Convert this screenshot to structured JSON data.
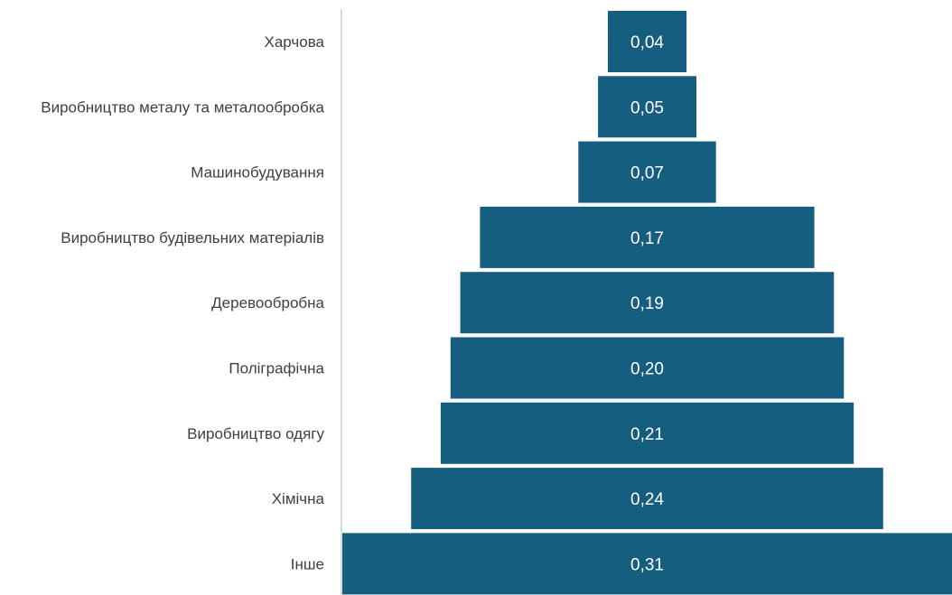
{
  "chart_data": {
    "type": "bar",
    "orientation": "horizontal",
    "layout": "funnel",
    "categories": [
      "Харчова",
      "Виробництво металу та металообробка",
      "Машинобудування",
      "Виробництво будівельних матеріалів",
      "Деревообробна",
      "Поліграфічна",
      "Виробництво одягу",
      "Хімічна",
      "Інше"
    ],
    "values": [
      0.04,
      0.05,
      0.07,
      0.17,
      0.19,
      0.2,
      0.21,
      0.24,
      0.31
    ],
    "value_labels": [
      "0,04",
      "0,05",
      "0,07",
      "0,17",
      "0,19",
      "0,20",
      "0,21",
      "0,24",
      "0,31"
    ],
    "title": "",
    "xlabel": "",
    "ylabel": "",
    "grid": false,
    "legend": "none",
    "bar_color": "#165e80",
    "label_color": "#ffffff"
  }
}
